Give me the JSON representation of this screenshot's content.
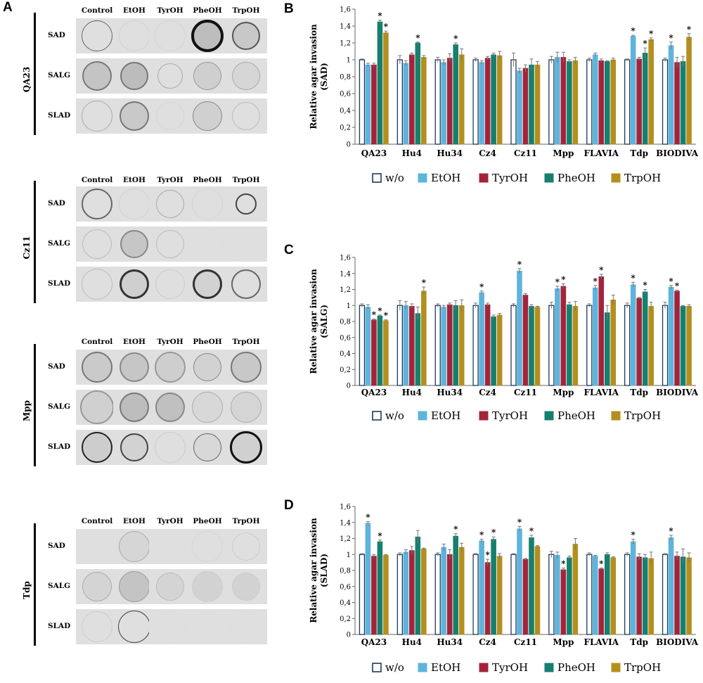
{
  "panel_labels": {
    "a": "A",
    "b": "B",
    "c": "C",
    "d": "D"
  },
  "plates": [
    {
      "strain": "QA23",
      "columns": [
        "Control",
        "EtOH",
        "TyrOH",
        "PheOH",
        "TrpOH"
      ],
      "rows": [
        "SAD",
        "SALG",
        "SLAD"
      ]
    },
    {
      "strain": "Cz11",
      "columns": [
        "Control",
        "EtOH",
        "TyrOH",
        "PheOH",
        "TrpOH"
      ],
      "rows": [
        "SAD",
        "SALG",
        "SLAD"
      ]
    },
    {
      "strain": "Mpp",
      "columns": [
        "Control",
        "EtOH",
        "TyrOH",
        "PheOH",
        "TrpOH"
      ],
      "rows": [
        "SAD",
        "SALG",
        "SLAD"
      ]
    },
    {
      "strain": "Tdp",
      "columns": [
        "Control",
        "EtOH",
        "TyrOH",
        "PheOH",
        "TrpOH"
      ],
      "rows": [
        "SAD",
        "SALG",
        "SLAD"
      ]
    }
  ],
  "legend": {
    "entries": [
      "w/o",
      "EtOH",
      "TyrOH",
      "PheOH",
      "TrpOH"
    ],
    "colors": [
      "#ffffff",
      "#5fb4dc",
      "#a3243a",
      "#167f6e",
      "#b48f1e"
    ]
  },
  "chart_data": [
    {
      "type": "bar",
      "title": "B",
      "ylabel": "Relative agar invasion (SAD)",
      "ylabel_line1": "Relative agar invasion",
      "ylabel_line2": "(SAD)",
      "ylim": [
        0,
        1.6
      ],
      "yticks": [
        "0",
        "0,2",
        "0,4",
        "0,6",
        "0,8",
        "1",
        "1,2",
        "1,4",
        "1,6"
      ],
      "categories": [
        "QA23",
        "Hu4",
        "Hu34",
        "Cz4",
        "Cz11",
        "Mpp",
        "FLAVIA",
        "Tdp",
        "BIODIVA"
      ],
      "series": [
        {
          "name": "w/o",
          "values": [
            1,
            1,
            1,
            1,
            1,
            1,
            1,
            1,
            1
          ],
          "errors": [
            0.01,
            0.05,
            0.03,
            0.02,
            0.08,
            0.04,
            0.02,
            0.01,
            0.02
          ],
          "stars": [
            false,
            false,
            false,
            false,
            false,
            false,
            false,
            false,
            false
          ]
        },
        {
          "name": "EtOH",
          "values": [
            0.94,
            0.96,
            0.97,
            0.97,
            0.87,
            1.03,
            1.06,
            1.28,
            1.17
          ],
          "errors": [
            0.02,
            0.03,
            0.03,
            0.02,
            0.03,
            0.06,
            0.02,
            0.01,
            0.04
          ],
          "stars": [
            false,
            false,
            false,
            false,
            false,
            false,
            false,
            true,
            true
          ]
        },
        {
          "name": "TyrOH",
          "values": [
            0.94,
            1.06,
            1.02,
            1.02,
            0.9,
            1.03,
            0.99,
            1.01,
            0.97
          ],
          "errors": [
            0.02,
            0.02,
            0.05,
            0.02,
            0.04,
            0.06,
            0.02,
            0.02,
            0.06
          ],
          "stars": [
            false,
            false,
            false,
            false,
            false,
            false,
            false,
            false,
            false
          ]
        },
        {
          "name": "PheOH",
          "values": [
            1.45,
            1.2,
            1.18,
            1.06,
            0.94,
            0.98,
            0.98,
            1.08,
            0.98
          ],
          "errors": [
            0.02,
            0.01,
            0.02,
            0.02,
            0.07,
            0.02,
            0.01,
            0.06,
            0.06
          ],
          "stars": [
            true,
            true,
            true,
            false,
            false,
            false,
            false,
            true,
            false
          ]
        },
        {
          "name": "TrpOH",
          "values": [
            1.32,
            1.03,
            1.06,
            1.05,
            0.94,
            0.99,
            1.0,
            1.24,
            1.27
          ],
          "errors": [
            0.02,
            0.02,
            0.07,
            0.05,
            0.04,
            0.04,
            0.02,
            0.02,
            0.04
          ],
          "stars": [
            true,
            false,
            false,
            false,
            false,
            false,
            false,
            true,
            true
          ]
        }
      ]
    },
    {
      "type": "bar",
      "title": "C",
      "ylabel": "Relative agar invasion (SALG)",
      "ylabel_line1": "Relative agar invasion",
      "ylabel_line2": "(SALG)",
      "ylim": [
        0,
        1.6
      ],
      "yticks": [
        "0",
        "0,2",
        "0,4",
        "0,6",
        "0,8",
        "1",
        "1,2",
        "1,4",
        "1,6"
      ],
      "categories": [
        "QA23",
        "Hu4",
        "Hu34",
        "Cz4",
        "Cz11",
        "Mpp",
        "FLAVIA",
        "Tdp",
        "BIODIVA"
      ],
      "series": [
        {
          "name": "w/o",
          "values": [
            1,
            1,
            1,
            1,
            1,
            1,
            1,
            1,
            1
          ],
          "errors": [
            0.02,
            0.06,
            0.02,
            0.03,
            0.02,
            0.04,
            0.02,
            0.03,
            0.04
          ],
          "stars": [
            false,
            false,
            false,
            false,
            false,
            false,
            false,
            false,
            false
          ]
        },
        {
          "name": "EtOH",
          "values": [
            0.98,
            1.0,
            0.98,
            1.16,
            1.43,
            1.21,
            1.22,
            1.26,
            1.23
          ],
          "errors": [
            0.03,
            0.05,
            0.02,
            0.02,
            0.03,
            0.03,
            0.03,
            0.03,
            0.02
          ],
          "stars": [
            false,
            false,
            false,
            true,
            true,
            true,
            true,
            true,
            true
          ]
        },
        {
          "name": "TyrOH",
          "values": [
            0.82,
            0.99,
            1.01,
            1.01,
            1.13,
            1.24,
            1.36,
            1.09,
            1.18
          ],
          "errors": [
            0.01,
            0.03,
            0.02,
            0.02,
            0.02,
            0.03,
            0.03,
            0.01,
            0.01
          ],
          "stars": [
            true,
            false,
            false,
            false,
            false,
            true,
            true,
            false,
            true
          ]
        },
        {
          "name": "PheOH",
          "values": [
            0.87,
            0.9,
            1.0,
            0.86,
            0.99,
            1.01,
            0.91,
            1.17,
            0.99
          ],
          "errors": [
            0.01,
            0.08,
            0.06,
            0.02,
            0.02,
            0.03,
            0.09,
            0.03,
            0.01
          ],
          "stars": [
            true,
            false,
            false,
            false,
            false,
            false,
            false,
            true,
            false
          ]
        },
        {
          "name": "TrpOH",
          "values": [
            0.81,
            1.18,
            1.0,
            0.88,
            0.98,
            0.99,
            1.07,
            0.99,
            0.99
          ],
          "errors": [
            0.01,
            0.05,
            0.07,
            0.02,
            0.01,
            0.06,
            0.06,
            0.05,
            0.02
          ],
          "stars": [
            true,
            true,
            false,
            false,
            false,
            false,
            false,
            false,
            false
          ]
        }
      ]
    },
    {
      "type": "bar",
      "title": "D",
      "ylabel": "Relative agar invasion (SLAD)",
      "ylabel_line1": "Relative agar invasion",
      "ylabel_line2": "(SLAD)",
      "ylim": [
        0,
        1.6
      ],
      "yticks": [
        "0",
        "0,2",
        "0,4",
        "0,6",
        "0,8",
        "1",
        "1,2",
        "1,4",
        "1,6"
      ],
      "categories": [
        "QA23",
        "Hu4",
        "Hu34",
        "Cz4",
        "Cz11",
        "Mpp",
        "FLAVIA",
        "Tdp",
        "BIODIVA"
      ],
      "series": [
        {
          "name": "w/o",
          "values": [
            1,
            1,
            1,
            1,
            1,
            1,
            1,
            1,
            1
          ],
          "errors": [
            0.01,
            0.02,
            0.02,
            0.01,
            0.01,
            0.04,
            0.02,
            0.02,
            0.01
          ],
          "stars": [
            false,
            false,
            false,
            false,
            false,
            false,
            false,
            false,
            false
          ]
        },
        {
          "name": "EtOH",
          "values": [
            1.39,
            1.03,
            1.09,
            1.17,
            1.32,
            0.99,
            0.98,
            1.16,
            1.21
          ],
          "errors": [
            0.02,
            0.03,
            0.04,
            0.02,
            0.03,
            0.04,
            0.01,
            0.03,
            0.03
          ],
          "stars": [
            true,
            false,
            false,
            true,
            true,
            false,
            false,
            true,
            true
          ]
        },
        {
          "name": "TyrOH",
          "values": [
            0.98,
            1.05,
            1.0,
            0.9,
            0.94,
            0.81,
            0.82,
            0.97,
            0.98
          ],
          "errors": [
            0.02,
            0.05,
            0.06,
            0.04,
            0.01,
            0.02,
            0.01,
            0.04,
            0.05
          ],
          "stars": [
            false,
            false,
            false,
            true,
            false,
            true,
            true,
            false,
            false
          ]
        },
        {
          "name": "PheOH",
          "values": [
            1.16,
            1.22,
            1.23,
            1.19,
            1.21,
            0.96,
            1.0,
            0.96,
            0.97
          ],
          "errors": [
            0.02,
            0.08,
            0.03,
            0.03,
            0.03,
            0.02,
            0.02,
            0.04,
            0.1
          ],
          "stars": [
            true,
            false,
            true,
            true,
            true,
            false,
            false,
            false,
            false
          ]
        },
        {
          "name": "TrpOH",
          "values": [
            0.99,
            1.07,
            1.09,
            0.98,
            1.1,
            1.13,
            0.96,
            0.95,
            0.96
          ],
          "errors": [
            0.01,
            0.01,
            0.05,
            0.03,
            0.01,
            0.07,
            0.01,
            0.08,
            0.06
          ],
          "stars": [
            false,
            false,
            false,
            false,
            false,
            false,
            false,
            false,
            false
          ]
        }
      ]
    }
  ]
}
